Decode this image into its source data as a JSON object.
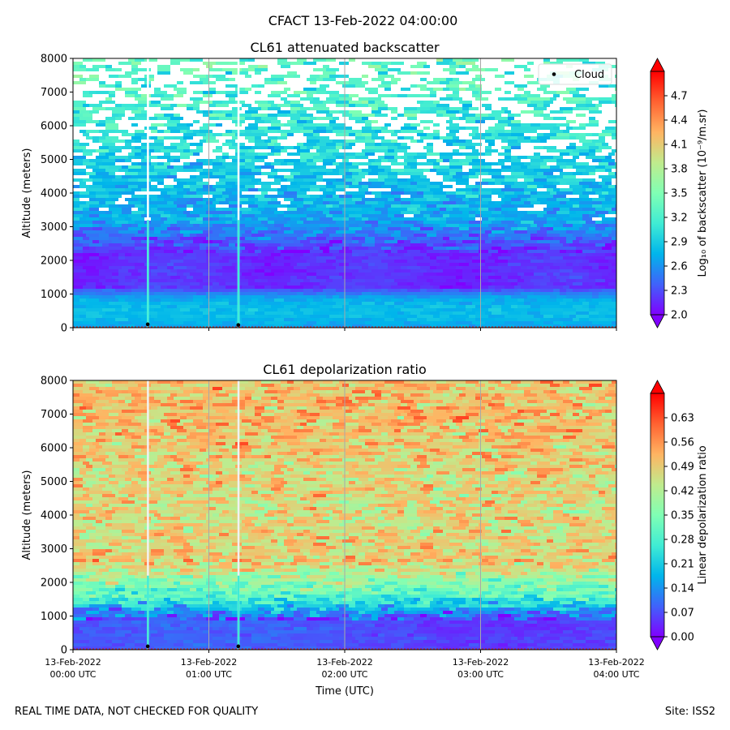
{
  "suptitle": "CFACT 13-Feb-2022 04:00:00",
  "footer_left": "REAL TIME DATA, NOT CHECKED FOR QUALITY",
  "footer_right": "Site: ISS2",
  "colors": {
    "axis": "#000000",
    "gridline": "#a8a8a8",
    "cloud_marker": "#000000",
    "legend_bg": "#ffffff",
    "colormap": [
      "#8000ff",
      "#4062fa",
      "#00b5eb",
      "#40ecd4",
      "#80ffb4",
      "#c0eb8d",
      "#ffb462",
      "#ff6231",
      "#ff0000"
    ]
  },
  "chart_data": [
    {
      "type": "heatmap",
      "title": "CL61 attenuated backscatter",
      "xlabel": "",
      "ylabel": "Altitude (meters)",
      "x_range": [
        "13-Feb-2022 00:00 UTC",
        "13-Feb-2022 04:00 UTC"
      ],
      "ylim": [
        0,
        8000
      ],
      "yticks": [
        "0",
        "1000",
        "2000",
        "3000",
        "4000",
        "5000",
        "6000",
        "7000",
        "8000"
      ],
      "xtick_labels": [],
      "grid": "vertical lines at hourly ticks",
      "legend": {
        "placement": "upper right",
        "entries": [
          {
            "label": "Cloud",
            "marker": "black dot"
          }
        ]
      },
      "cloud_detections": [
        {
          "time": "13-Feb-2022 00:33 UTC",
          "altitude_m": 100
        },
        {
          "time": "13-Feb-2022 01:13 UTC",
          "altitude_m": 80
        }
      ],
      "artifact_streaks": [
        "13-Feb-2022 00:33 UTC",
        "13-Feb-2022 01:13 UTC"
      ],
      "colorbar": {
        "label": "Log₁₀ of backscatter (10⁻⁹/m.sr)",
        "range": [
          2.0,
          5.0
        ],
        "extend": "both",
        "ticks": [
          "2.0",
          "2.3",
          "2.6",
          "2.9",
          "3.2",
          "3.5",
          "3.8",
          "4.1",
          "4.4",
          "4.7"
        ]
      },
      "field_description": "Backscatter about 2.5-2.8 near surface (0-1000 m), lowest (~2.0) in a band from about 1200-2200 m, rising and increasingly sparse/noisy above 3000 m with many missing values near the top."
    },
    {
      "type": "heatmap",
      "title": "CL61 depolarization ratio",
      "xlabel": "Time (UTC)",
      "ylabel": "Altitude (meters)",
      "x_range": [
        "13-Feb-2022 00:00 UTC",
        "13-Feb-2022 04:00 UTC"
      ],
      "ylim": [
        0,
        8000
      ],
      "yticks": [
        "0",
        "1000",
        "2000",
        "3000",
        "4000",
        "5000",
        "6000",
        "7000",
        "8000"
      ],
      "xtick_labels": [
        [
          "13-Feb-2022",
          "00:00 UTC"
        ],
        [
          "13-Feb-2022",
          "01:00 UTC"
        ],
        [
          "13-Feb-2022",
          "02:00 UTC"
        ],
        [
          "13-Feb-2022",
          "03:00 UTC"
        ],
        [
          "13-Feb-2022",
          "04:00 UTC"
        ]
      ],
      "grid": "vertical lines at hourly ticks",
      "cloud_detections": [
        {
          "time": "13-Feb-2022 00:33 UTC",
          "altitude_m": 100
        },
        {
          "time": "13-Feb-2022 01:13 UTC",
          "altitude_m": 100
        }
      ],
      "artifact_streaks": [
        "13-Feb-2022 00:33 UTC",
        "13-Feb-2022 01:13 UTC"
      ],
      "colorbar": {
        "label": "Linear depolarization ratio",
        "range": [
          0.0,
          0.7
        ],
        "extend": "both",
        "ticks": [
          "0.00",
          "0.07",
          "0.14",
          "0.21",
          "0.28",
          "0.35",
          "0.42",
          "0.49",
          "0.56",
          "0.63"
        ]
      },
      "field_description": "Depolarization about 0.05-0.10 below 1000 m, a turquoise transition band (~0.25-0.35) near 1200-1600 m, then noisy 0.45-0.70 values above 2000 m."
    }
  ]
}
